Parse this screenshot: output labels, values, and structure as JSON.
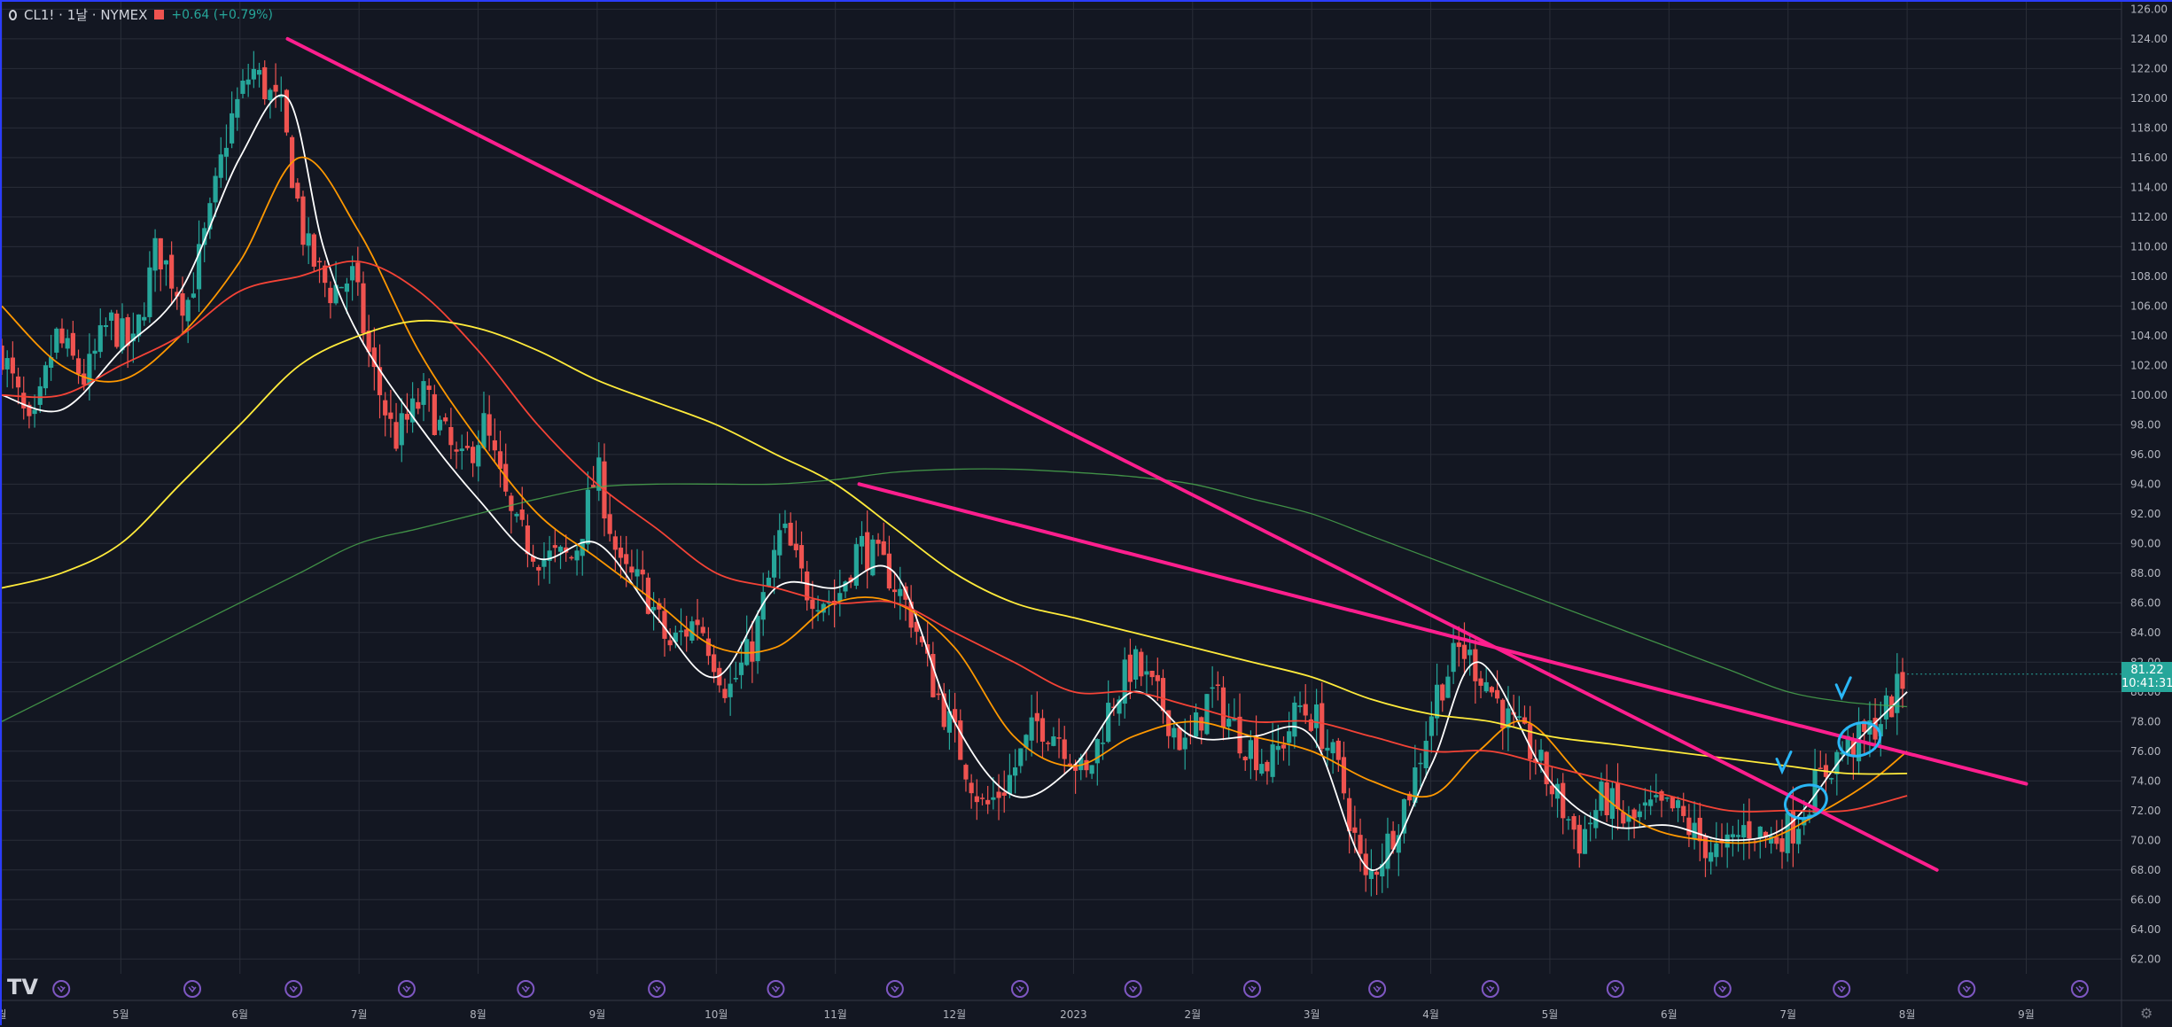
{
  "header": {
    "symbol": "CL1! · 1날 · NYMEX",
    "change": "+0.64 (+0.79%)"
  },
  "price_tag": {
    "price": "81.22",
    "countdown": "10:41:31"
  },
  "logo": "TV",
  "icons": {
    "settings": "gear-icon",
    "event": "dividends-event-icon"
  },
  "colors": {
    "background": "#131722",
    "grid": "#2a2e39",
    "up": "#26a69a",
    "down": "#ef5350",
    "ma_fast": "#ffffff",
    "ma_orange": "#ff9800",
    "ma_red": "#f44336",
    "ma_yellow": "#ffeb3b",
    "ma_green": "#4caf50",
    "trendline": "#ff1f8e",
    "annotation": "#29b6f6"
  },
  "chart_data": {
    "type": "candlestick",
    "y_axis": {
      "ticks": [
        "126.00",
        "124.00",
        "122.00",
        "120.00",
        "118.00",
        "116.00",
        "114.00",
        "112.00",
        "110.00",
        "108.00",
        "106.00",
        "104.00",
        "102.00",
        "100.00",
        "98.00",
        "96.00",
        "94.00",
        "92.00",
        "90.00",
        "88.00",
        "86.00",
        "84.00",
        "82.00",
        "80.00",
        "78.00",
        "76.00",
        "74.00",
        "72.00",
        "70.00",
        "68.00",
        "66.00",
        "64.00",
        "62.00"
      ],
      "range": [
        61,
        126.5
      ]
    },
    "x_axis": {
      "labels": [
        {
          "t": 0,
          "label": "월"
        },
        {
          "t": 1,
          "label": "5월"
        },
        {
          "t": 2,
          "label": "6월"
        },
        {
          "t": 3,
          "label": "7월"
        },
        {
          "t": 4,
          "label": "8월"
        },
        {
          "t": 5,
          "label": "9월"
        },
        {
          "t": 6,
          "label": "10월"
        },
        {
          "t": 7,
          "label": "11월"
        },
        {
          "t": 8,
          "label": "12월"
        },
        {
          "t": 9,
          "label": "2023"
        },
        {
          "t": 10,
          "label": "2월"
        },
        {
          "t": 11,
          "label": "3월"
        },
        {
          "t": 12,
          "label": "4월"
        },
        {
          "t": 13,
          "label": "5월"
        },
        {
          "t": 14,
          "label": "6월"
        },
        {
          "t": 15,
          "label": "7월"
        },
        {
          "t": 16,
          "label": "8월"
        },
        {
          "t": 17,
          "label": "9월"
        }
      ],
      "range": [
        0,
        17.8
      ]
    },
    "price_path": [
      [
        0.0,
        103
      ],
      [
        0.25,
        97
      ],
      [
        0.45,
        104
      ],
      [
        0.7,
        101
      ],
      [
        0.9,
        105
      ],
      [
        1.1,
        103
      ],
      [
        1.3,
        110
      ],
      [
        1.55,
        106
      ],
      [
        1.75,
        112
      ],
      [
        1.9,
        118
      ],
      [
        2.1,
        122
      ],
      [
        2.35,
        119
      ],
      [
        2.55,
        110
      ],
      [
        2.75,
        107
      ],
      [
        2.95,
        108
      ],
      [
        3.1,
        102
      ],
      [
        3.3,
        97
      ],
      [
        3.55,
        100
      ],
      [
        3.85,
        95
      ],
      [
        4.05,
        98
      ],
      [
        4.3,
        91
      ],
      [
        4.55,
        89
      ],
      [
        4.8,
        89
      ],
      [
        5.0,
        95
      ],
      [
        5.2,
        88
      ],
      [
        5.4,
        87
      ],
      [
        5.6,
        83
      ],
      [
        5.85,
        85
      ],
      [
        6.1,
        80
      ],
      [
        6.3,
        83
      ],
      [
        6.55,
        91
      ],
      [
        6.75,
        87
      ],
      [
        7.0,
        86
      ],
      [
        7.2,
        90
      ],
      [
        7.45,
        88
      ],
      [
        7.65,
        85
      ],
      [
        7.8,
        81
      ],
      [
        8.0,
        77
      ],
      [
        8.25,
        72
      ],
      [
        8.45,
        74
      ],
      [
        8.7,
        78
      ],
      [
        8.9,
        77
      ],
      [
        9.1,
        74
      ],
      [
        9.3,
        79
      ],
      [
        9.5,
        82
      ],
      [
        9.75,
        79
      ],
      [
        9.95,
        76
      ],
      [
        10.15,
        80
      ],
      [
        10.4,
        77
      ],
      [
        10.65,
        75
      ],
      [
        10.9,
        79
      ],
      [
        11.05,
        78
      ],
      [
        11.25,
        74
      ],
      [
        11.45,
        67
      ],
      [
        11.65,
        70
      ],
      [
        11.85,
        74
      ],
      [
        12.05,
        80
      ],
      [
        12.25,
        83
      ],
      [
        12.45,
        81
      ],
      [
        12.65,
        78
      ],
      [
        12.85,
        76
      ],
      [
        13.05,
        73
      ],
      [
        13.25,
        70
      ],
      [
        13.45,
        73
      ],
      [
        13.65,
        71
      ],
      [
        13.85,
        72
      ],
      [
        14.05,
        72
      ],
      [
        14.25,
        70
      ],
      [
        14.45,
        69
      ],
      [
        14.65,
        71
      ],
      [
        14.85,
        70
      ],
      [
        15.05,
        71
      ],
      [
        15.25,
        74
      ],
      [
        15.45,
        76
      ],
      [
        15.65,
        77
      ],
      [
        15.85,
        79
      ],
      [
        16.0,
        81.2
      ]
    ],
    "moving_averages": [
      {
        "color": "#ffffff",
        "points": [
          [
            0,
            100
          ],
          [
            0.5,
            99
          ],
          [
            1,
            103
          ],
          [
            1.5,
            107
          ],
          [
            2,
            116
          ],
          [
            2.4,
            120
          ],
          [
            2.7,
            110
          ],
          [
            3,
            104
          ],
          [
            3.5,
            98
          ],
          [
            4,
            93
          ],
          [
            4.5,
            89
          ],
          [
            5,
            90
          ],
          [
            5.5,
            85
          ],
          [
            6,
            81
          ],
          [
            6.5,
            87
          ],
          [
            7,
            87
          ],
          [
            7.5,
            88
          ],
          [
            8,
            78
          ],
          [
            8.5,
            73
          ],
          [
            9,
            75
          ],
          [
            9.5,
            80
          ],
          [
            10,
            77
          ],
          [
            10.5,
            77
          ],
          [
            11,
            77
          ],
          [
            11.5,
            68
          ],
          [
            12,
            75
          ],
          [
            12.4,
            82
          ],
          [
            13,
            74
          ],
          [
            13.5,
            71
          ],
          [
            14,
            71
          ],
          [
            14.5,
            70
          ],
          [
            15,
            71
          ],
          [
            15.5,
            76
          ],
          [
            16,
            80
          ]
        ]
      },
      {
        "color": "#ff9800",
        "points": [
          [
            0,
            106
          ],
          [
            0.5,
            102
          ],
          [
            1,
            101
          ],
          [
            1.5,
            104
          ],
          [
            2,
            109
          ],
          [
            2.5,
            116
          ],
          [
            3,
            111
          ],
          [
            3.5,
            103
          ],
          [
            4,
            97
          ],
          [
            4.5,
            92
          ],
          [
            5,
            89
          ],
          [
            5.5,
            86
          ],
          [
            6,
            83
          ],
          [
            6.5,
            83
          ],
          [
            7,
            86
          ],
          [
            7.5,
            86
          ],
          [
            8,
            83
          ],
          [
            8.5,
            77
          ],
          [
            9,
            75
          ],
          [
            9.5,
            77
          ],
          [
            10,
            78
          ],
          [
            10.5,
            77
          ],
          [
            11,
            76
          ],
          [
            11.5,
            74
          ],
          [
            12,
            73
          ],
          [
            12.4,
            76
          ],
          [
            12.8,
            78
          ],
          [
            13.3,
            74
          ],
          [
            13.8,
            71
          ],
          [
            14.3,
            70
          ],
          [
            14.8,
            70
          ],
          [
            15.3,
            72
          ],
          [
            15.7,
            74
          ],
          [
            16,
            76
          ]
        ]
      },
      {
        "color": "#f44336",
        "points": [
          [
            0,
            100
          ],
          [
            0.5,
            100
          ],
          [
            1,
            102
          ],
          [
            1.5,
            104
          ],
          [
            2,
            107
          ],
          [
            2.5,
            108
          ],
          [
            3,
            109
          ],
          [
            3.5,
            107
          ],
          [
            4,
            103
          ],
          [
            4.5,
            98
          ],
          [
            5,
            94
          ],
          [
            5.5,
            91
          ],
          [
            6,
            88
          ],
          [
            6.5,
            87
          ],
          [
            7,
            86
          ],
          [
            7.5,
            86
          ],
          [
            8,
            84
          ],
          [
            8.5,
            82
          ],
          [
            9,
            80
          ],
          [
            9.5,
            80
          ],
          [
            10,
            79
          ],
          [
            10.5,
            78
          ],
          [
            11,
            78
          ],
          [
            11.5,
            77
          ],
          [
            12,
            76
          ],
          [
            12.5,
            76
          ],
          [
            13,
            75
          ],
          [
            13.5,
            74
          ],
          [
            14,
            73
          ],
          [
            14.5,
            72
          ],
          [
            15,
            72
          ],
          [
            15.5,
            72
          ],
          [
            16,
            73
          ]
        ]
      },
      {
        "color": "#ffeb3b",
        "points": [
          [
            0,
            87
          ],
          [
            0.5,
            88
          ],
          [
            1,
            90
          ],
          [
            1.5,
            94
          ],
          [
            2,
            98
          ],
          [
            2.5,
            102
          ],
          [
            3,
            104
          ],
          [
            3.5,
            105
          ],
          [
            4,
            104.5
          ],
          [
            4.5,
            103
          ],
          [
            5,
            101
          ],
          [
            5.5,
            99.5
          ],
          [
            6,
            98
          ],
          [
            6.5,
            96
          ],
          [
            7,
            94
          ],
          [
            7.5,
            91
          ],
          [
            8,
            88
          ],
          [
            8.5,
            86
          ],
          [
            9,
            85
          ],
          [
            9.5,
            84
          ],
          [
            10,
            83
          ],
          [
            10.5,
            82
          ],
          [
            11,
            81
          ],
          [
            11.5,
            79.5
          ],
          [
            12,
            78.5
          ],
          [
            12.5,
            78
          ],
          [
            13,
            77
          ],
          [
            13.5,
            76.5
          ],
          [
            14,
            76
          ],
          [
            14.5,
            75.5
          ],
          [
            15,
            75
          ],
          [
            15.5,
            74.5
          ],
          [
            16,
            74.5
          ]
        ]
      },
      {
        "color": "#4caf50",
        "points": [
          [
            0,
            78
          ],
          [
            0.5,
            80
          ],
          [
            1,
            82
          ],
          [
            1.5,
            84
          ],
          [
            2,
            86
          ],
          [
            2.5,
            88
          ],
          [
            3,
            90
          ],
          [
            3.5,
            91
          ],
          [
            4,
            92
          ],
          [
            4.5,
            93
          ],
          [
            5,
            93.8
          ],
          [
            5.5,
            94
          ],
          [
            6,
            94
          ],
          [
            6.5,
            94
          ],
          [
            7,
            94.3
          ],
          [
            7.5,
            94.8
          ],
          [
            8,
            95
          ],
          [
            8.5,
            95
          ],
          [
            9,
            94.8
          ],
          [
            9.5,
            94.5
          ],
          [
            10,
            94
          ],
          [
            10.5,
            93
          ],
          [
            11,
            92
          ],
          [
            11.5,
            90.5
          ],
          [
            12,
            89
          ],
          [
            12.5,
            87.5
          ],
          [
            13,
            86
          ],
          [
            13.5,
            84.5
          ],
          [
            14,
            83
          ],
          [
            14.5,
            81.5
          ],
          [
            15,
            80
          ],
          [
            15.5,
            79.3
          ],
          [
            16,
            79
          ]
        ]
      }
    ],
    "trendlines": [
      {
        "from": [
          2.4,
          124
        ],
        "to": [
          16.25,
          68
        ]
      },
      {
        "from": [
          7.2,
          94
        ],
        "to": [
          17.0,
          73.8
        ]
      }
    ],
    "annotations": [
      {
        "type": "ellipse",
        "center": [
          15.15,
          72.6
        ]
      },
      {
        "type": "ellipse",
        "center": [
          15.6,
          76.8
        ]
      },
      {
        "type": "checkmark",
        "at": [
          14.95,
          75.0
        ]
      },
      {
        "type": "checkmark",
        "at": [
          15.45,
          80.0
        ]
      }
    ],
    "event_markers_t": [
      0.5,
      1.6,
      2.45,
      3.4,
      4.4,
      5.5,
      6.5,
      7.5,
      8.55,
      9.5,
      10.5,
      11.55,
      12.5,
      13.55,
      14.45,
      15.45,
      16.5,
      17.45
    ]
  }
}
